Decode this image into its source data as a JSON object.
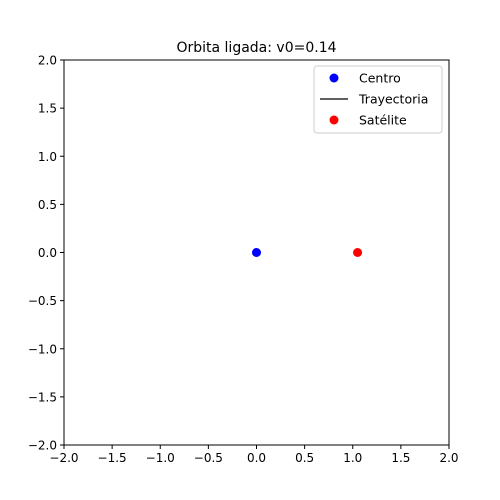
{
  "chart_data": {
    "type": "scatter",
    "title": "Orbita ligada: v0=0.14",
    "xlabel": "",
    "ylabel": "",
    "xlim": [
      -2.0,
      2.0
    ],
    "ylim": [
      -2.0,
      2.0
    ],
    "grid": false,
    "legend_position": "top-right",
    "xticks": [
      -2.0,
      -1.5,
      -1.0,
      -0.5,
      0.0,
      0.5,
      1.0,
      1.5,
      2.0
    ],
    "yticks": [
      -2.0,
      -1.5,
      -1.0,
      -0.5,
      0.0,
      0.5,
      1.0,
      1.5,
      2.0
    ],
    "xtick_labels": [
      "−2.0",
      "−1.5",
      "−1.0",
      "−0.5",
      "0.0",
      "0.5",
      "1.0",
      "1.5",
      "2.0"
    ],
    "ytick_labels": [
      "−2.0",
      "−1.5",
      "−1.0",
      "−0.5",
      "0.0",
      "0.5",
      "1.0",
      "1.5",
      "2.0"
    ],
    "series": [
      {
        "name": "Centro",
        "kind": "marker",
        "color": "#0000ff",
        "x": [
          0.0
        ],
        "y": [
          0.0
        ]
      },
      {
        "name": "Trayectoria",
        "kind": "line",
        "color": "#000000",
        "x": [],
        "y": []
      },
      {
        "name": "Satélite",
        "kind": "marker",
        "color": "#ff0000",
        "x": [
          1.05
        ],
        "y": [
          0.0
        ]
      }
    ]
  }
}
